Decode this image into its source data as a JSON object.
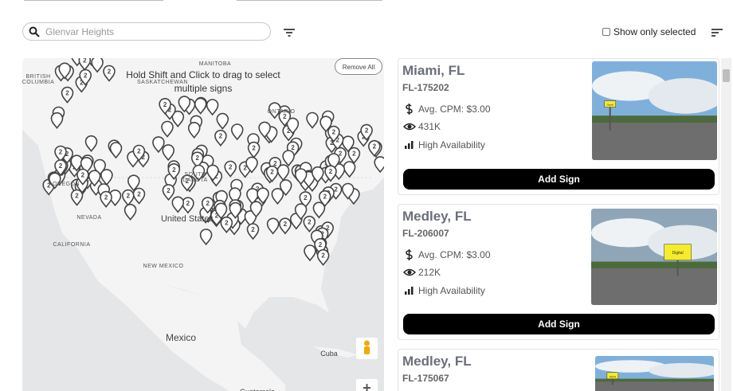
{
  "toolbar": {
    "search_placeholder": "Glenvar Heights",
    "show_only_selected": "Show only selected"
  },
  "map": {
    "hint": "Hold Shift and Click to drag to select multiple signs",
    "remove_all": "Remove All",
    "cluster_label": "2",
    "labels": [
      "MANITOBA",
      "BRITISH COLUMBIA",
      "SASKATCHEWAN",
      "ONTARIO",
      "OREGON",
      "SOUTH DAKOTA",
      "NEVADA",
      "CALIFORNIA",
      "United States",
      "NEW MEXICO",
      "Mexico",
      "Cuba",
      "Guatemala"
    ]
  },
  "listings": [
    {
      "title": "Miami, FL",
      "id": "FL-175202",
      "cpm": "Avg. CPM: $3.00",
      "views": "431K",
      "availability": "High Availability",
      "button": "Add Sign",
      "image_tag": "Digital"
    },
    {
      "title": "Medley, FL",
      "id": "FL-206007",
      "cpm": "Avg. CPM: $3.00",
      "views": "212K",
      "availability": "High Availability",
      "button": "Add Sign",
      "image_tag": "Digital"
    },
    {
      "title": "Medley, FL",
      "id": "FL-175067",
      "image_tag": "Digital"
    }
  ]
}
